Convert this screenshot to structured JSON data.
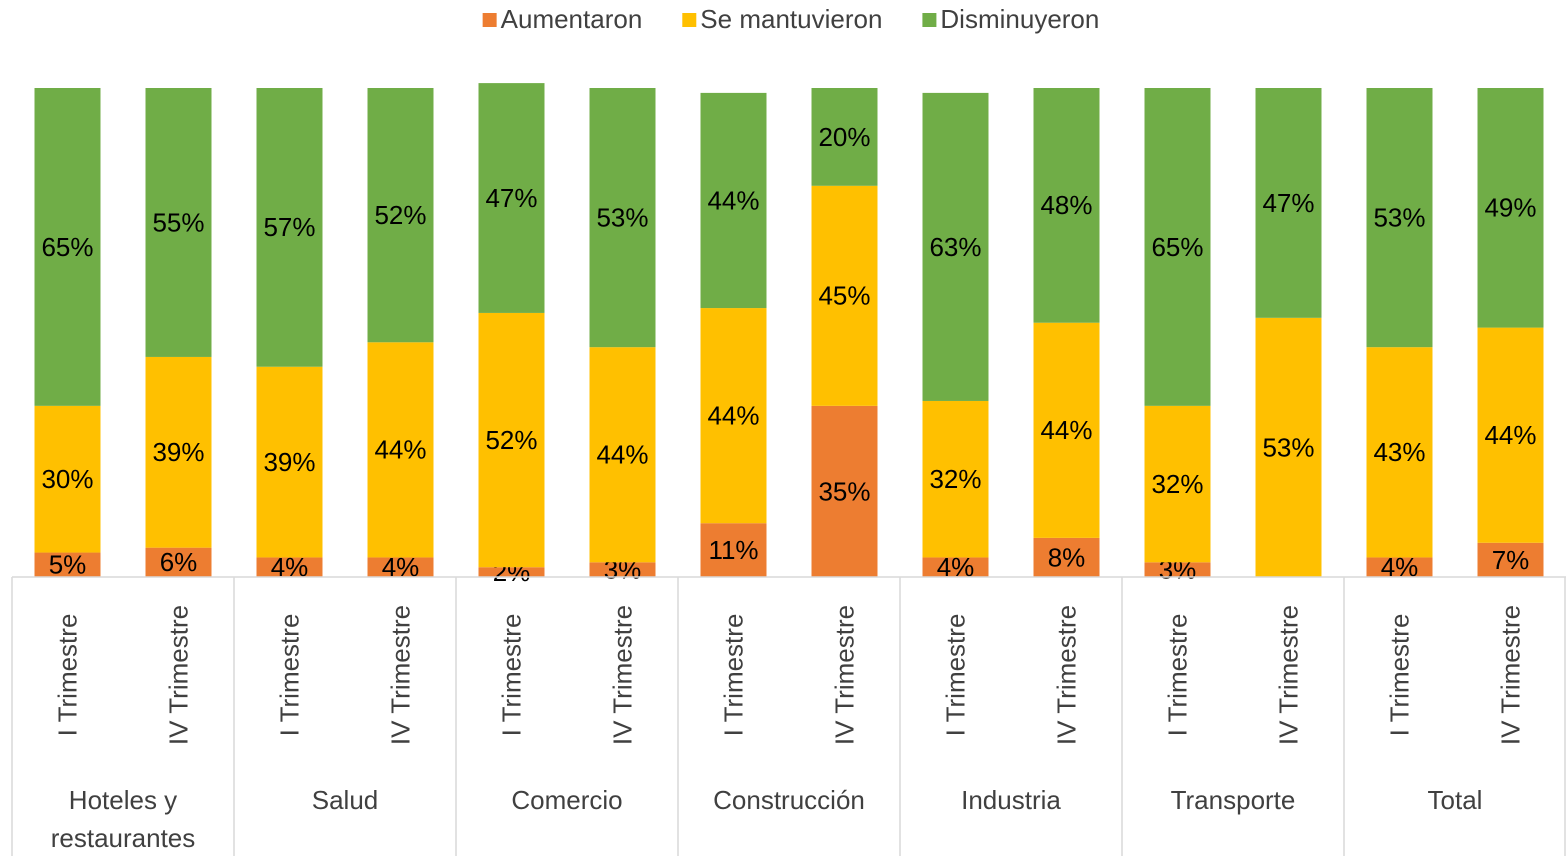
{
  "chart_data": {
    "type": "bar",
    "stacked": true,
    "legend": "top",
    "categories": [
      "I Trimestre",
      "IV Trimestre",
      "I Trimestre",
      "IV Trimestre",
      "I Trimestre",
      "IV Trimestre",
      "I Trimestre",
      "IV Trimestre",
      "I Trimestre",
      "IV Trimestre",
      "I Trimestre",
      "IV Trimestre",
      "I Trimestre",
      "IV Trimestre"
    ],
    "groups": [
      "Hoteles y\nrestaurantes",
      "Salud",
      "Comercio",
      "Construcción",
      "Industria",
      "Transporte",
      "Total"
    ],
    "ylim": [
      0,
      100
    ],
    "series": [
      {
        "name": "Aumentaron",
        "color": "#ED7D31",
        "values": [
          5,
          6,
          4,
          4,
          2,
          3,
          11,
          35,
          4,
          8,
          3,
          null,
          4,
          7
        ],
        "value_labels": [
          "5%",
          "6%",
          "4%",
          "4%",
          "2%",
          "3%",
          "11%",
          "35%",
          "4%",
          "8%",
          "3%",
          null,
          "4%",
          "7%"
        ]
      },
      {
        "name": "Se mantuvieron",
        "color": "#FFC000",
        "values": [
          30,
          39,
          39,
          44,
          52,
          44,
          44,
          45,
          32,
          44,
          32,
          53,
          43,
          44
        ],
        "value_labels": [
          "30%",
          "39%",
          "39%",
          "44%",
          "52%",
          "44%",
          "44%",
          "45%",
          "32%",
          "44%",
          "32%",
          "53%",
          "43%",
          "44%"
        ]
      },
      {
        "name": "Disminuyeron",
        "color": "#70AD47",
        "values": [
          65,
          55,
          57,
          52,
          47,
          53,
          44,
          20,
          63,
          48,
          65,
          47,
          53,
          49
        ],
        "value_labels": [
          "65%",
          "55%",
          "57%",
          "52%",
          "47%",
          "53%",
          "44%",
          "20%",
          "63%",
          "48%",
          "65%",
          "47%",
          "53%",
          "49%"
        ]
      }
    ]
  }
}
